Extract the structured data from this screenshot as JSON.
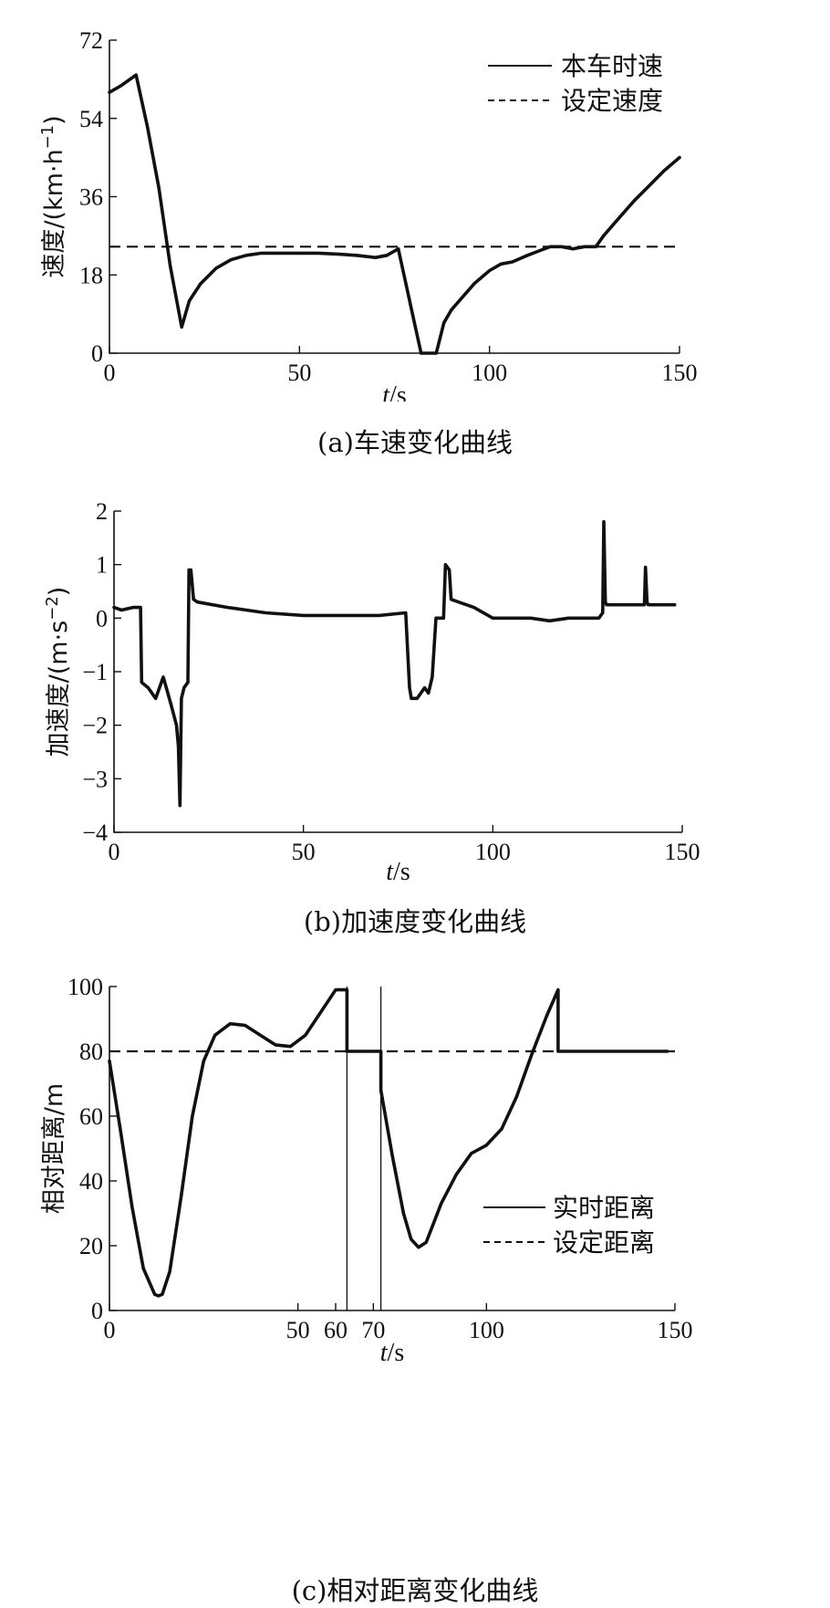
{
  "chart_data": [
    {
      "id": "a",
      "type": "line",
      "caption": "(a)车速变化曲线",
      "xlabel_italic": "t",
      "xlabel_rest": "/s",
      "ylabel": "速度/(km·h",
      "ylabel_sup": "−1",
      "ylabel_tail": ")",
      "xlim": [
        0,
        150
      ],
      "ylim": [
        0,
        72
      ],
      "xticks": [
        0,
        50,
        100,
        150
      ],
      "yticks": [
        0,
        18,
        36,
        54,
        72
      ],
      "legend_position": "top-right",
      "series": [
        {
          "name": "本车时速",
          "style": "solid",
          "x": [
            0,
            3,
            7,
            10,
            13,
            16,
            19,
            21,
            24,
            28,
            32,
            36,
            40,
            45,
            50,
            55,
            60,
            65,
            70,
            73,
            76,
            78,
            80,
            82,
            84,
            86,
            88,
            90,
            93,
            96,
            100,
            103,
            106,
            110,
            113,
            116,
            119,
            122,
            125,
            128,
            130,
            134,
            138,
            142,
            146,
            150
          ],
          "y": [
            60,
            61.5,
            64,
            52,
            38,
            20,
            6,
            12,
            16,
            19.5,
            21.5,
            22.5,
            23,
            23,
            23,
            23,
            22.8,
            22.5,
            22,
            22.5,
            24,
            16,
            8,
            0,
            0,
            0,
            7,
            10,
            13,
            16,
            19,
            20.5,
            21,
            22.5,
            23.5,
            24.5,
            24.5,
            24,
            24.5,
            24.5,
            27,
            31,
            35,
            38.5,
            42,
            45
          ]
        },
        {
          "name": "设定速度",
          "style": "dashed",
          "x": [
            0,
            150
          ],
          "y": [
            24.5,
            24.5
          ]
        }
      ]
    },
    {
      "id": "b",
      "type": "line",
      "caption": "(b)加速度变化曲线",
      "xlabel_italic": "t",
      "xlabel_rest": "/s",
      "ylabel": "加速度/(m·s",
      "ylabel_sup": "−2",
      "ylabel_tail": ")",
      "xlim": [
        0,
        150
      ],
      "ylim": [
        -4,
        2
      ],
      "xticks": [
        0,
        50,
        100,
        150
      ],
      "yticks": [
        -4,
        -3,
        -2,
        -1,
        0,
        1,
        2
      ],
      "series": [
        {
          "name": "",
          "style": "solid",
          "x": [
            0,
            2,
            5,
            7,
            7.3,
            9,
            11,
            13,
            15,
            16.5,
            17,
            17.4,
            17.8,
            18.5,
            19.5,
            19.8,
            20.3,
            21,
            22,
            30,
            40,
            50,
            60,
            70,
            77,
            78,
            78.5,
            80,
            82,
            83,
            84,
            85,
            86,
            87,
            87.5,
            88.5,
            89,
            95,
            100,
            105,
            110,
            115,
            120,
            125,
            128,
            129,
            129.3,
            129.7,
            130,
            135,
            140,
            140.3,
            140.7,
            141,
            145,
            148
          ],
          "y": [
            0.2,
            0.15,
            0.2,
            0.2,
            -1.2,
            -1.3,
            -1.5,
            -1.1,
            -1.6,
            -2.0,
            -2.4,
            -3.5,
            -1.5,
            -1.3,
            -1.2,
            0.9,
            0.9,
            0.35,
            0.3,
            0.2,
            0.1,
            0.05,
            0.05,
            0.05,
            0.1,
            -1.3,
            -1.5,
            -1.5,
            -1.3,
            -1.4,
            -1.1,
            0.0,
            0.0,
            0.0,
            1.0,
            0.9,
            0.35,
            0.2,
            0.0,
            0.0,
            0.0,
            -0.05,
            0.0,
            0.0,
            0.0,
            0.1,
            1.8,
            0.3,
            0.25,
            0.25,
            0.25,
            0.95,
            0.3,
            0.25,
            0.25,
            0.25
          ]
        }
      ]
    },
    {
      "id": "c",
      "type": "line",
      "caption": "(c)相对距离变化曲线",
      "xlabel_italic": "t",
      "xlabel_rest": "/s",
      "ylabel": "相对距离/m",
      "ylabel_sup": "",
      "ylabel_tail": "",
      "xlim": [
        0,
        150
      ],
      "ylim": [
        0,
        100
      ],
      "xticks": [
        0,
        50,
        60,
        70,
        100,
        150
      ],
      "yticks": [
        0,
        20,
        40,
        60,
        80,
        100
      ],
      "vlines": [
        63,
        72
      ],
      "legend_position": "bottom-right",
      "series": [
        {
          "name": "实时距离",
          "style": "solid",
          "x": [
            0,
            3,
            6,
            9,
            12,
            13,
            14,
            16,
            19,
            22,
            25,
            28,
            32,
            36,
            40,
            44,
            48,
            52,
            56,
            60,
            63,
            63.01,
            72,
            72.01,
            75,
            78,
            80,
            82,
            84,
            86,
            88,
            92,
            96,
            100,
            104,
            108,
            112,
            116,
            119,
            119.01,
            148
          ],
          "y": [
            77,
            55,
            32,
            13,
            5,
            4.5,
            5,
            12,
            35,
            60,
            77,
            85,
            88.5,
            88,
            85,
            82,
            81.5,
            85,
            92,
            99,
            99,
            80,
            80,
            68,
            48,
            30,
            22,
            19.5,
            21,
            27,
            33,
            42,
            48.5,
            51,
            56,
            66,
            79,
            91,
            99,
            80,
            80
          ]
        },
        {
          "name": "设定距离",
          "style": "dashed",
          "x": [
            0,
            150
          ],
          "y": [
            80,
            80
          ]
        }
      ]
    }
  ]
}
